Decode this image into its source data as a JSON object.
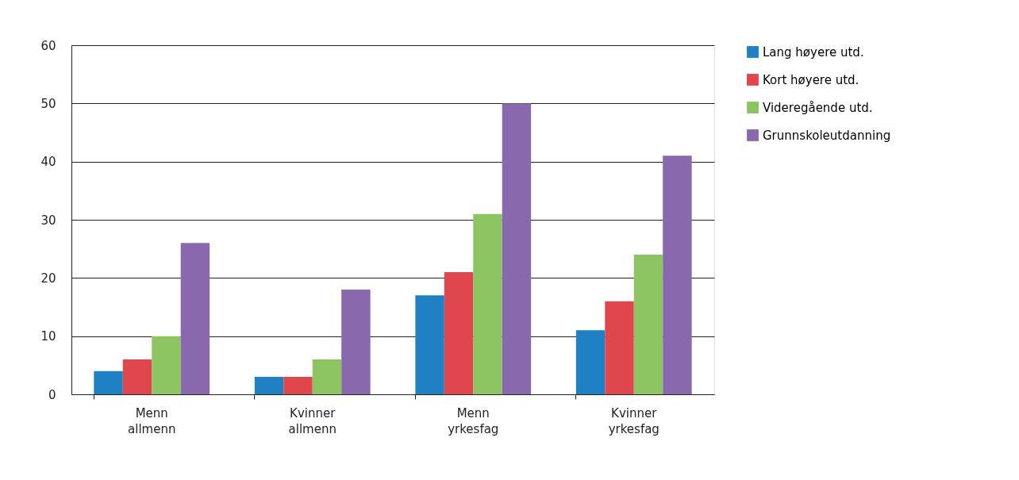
{
  "chart_data": {
    "type": "bar",
    "categories": [
      "Menn allmenn",
      "Kvinner allmenn",
      "Menn yrkesfag",
      "Kvinner yrkesfag"
    ],
    "series": [
      {
        "name": "Lang høyere utd.",
        "color": "#1f80c4",
        "values": [
          4,
          3,
          17,
          11
        ]
      },
      {
        "name": "Kort høyere utd.",
        "color": "#e0474c",
        "values": [
          6,
          3,
          21,
          16
        ]
      },
      {
        "name": "Videregående  utd.",
        "color": "#8cc462",
        "values": [
          10,
          6,
          31,
          24
        ]
      },
      {
        "name": "Grunnskoleutdanning",
        "color": "#8a68ad",
        "values": [
          26,
          18,
          50,
          41
        ]
      }
    ],
    "ylim": [
      0,
      60
    ],
    "yticks": [
      0,
      10,
      20,
      30,
      40,
      50,
      60
    ],
    "grid": "y",
    "legend": "right"
  }
}
